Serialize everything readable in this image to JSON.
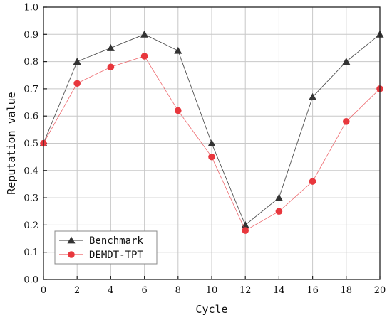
{
  "chart_data": {
    "type": "line",
    "xlabel": "Cycle",
    "ylabel": "Reputation value",
    "xlim": [
      0,
      20
    ],
    "ylim": [
      0.0,
      1.0
    ],
    "x_ticks": [
      "0",
      "2",
      "4",
      "6",
      "8",
      "10",
      "12",
      "14",
      "16",
      "18",
      "20"
    ],
    "y_ticks": [
      "0.0",
      "0.1",
      "0.2",
      "0.3",
      "0.4",
      "0.5",
      "0.6",
      "0.7",
      "0.8",
      "0.9",
      "1.0"
    ],
    "grid": true,
    "legend_position": "bottom-left",
    "x": [
      0,
      2,
      4,
      6,
      8,
      10,
      12,
      14,
      16,
      18,
      20
    ],
    "series": [
      {
        "name": "Benchmark",
        "marker": "triangle",
        "color": "#333333",
        "values": [
          0.5,
          0.8,
          0.85,
          0.9,
          0.84,
          0.5,
          0.2,
          0.3,
          0.67,
          0.8,
          0.9
        ]
      },
      {
        "name": "DEMDT-TPT",
        "marker": "circle",
        "color": "#e8373d",
        "values": [
          0.5,
          0.72,
          0.78,
          0.82,
          0.62,
          0.45,
          0.18,
          0.25,
          0.36,
          0.58,
          0.7
        ]
      }
    ]
  }
}
